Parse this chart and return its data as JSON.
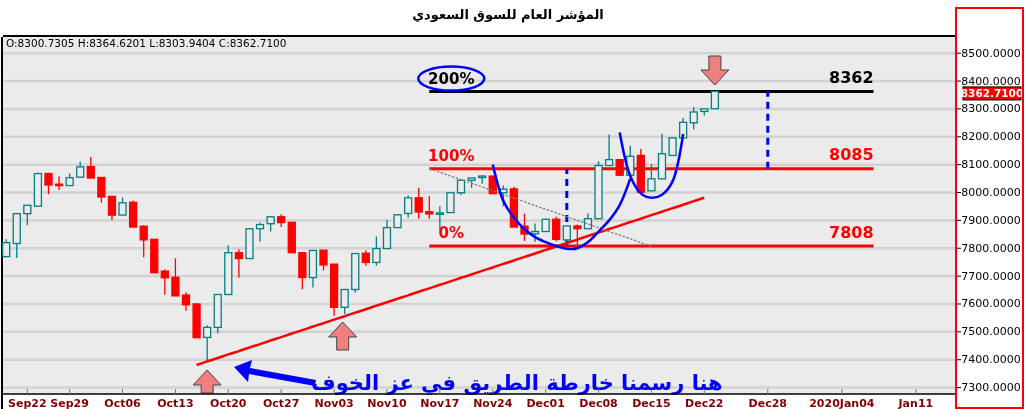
{
  "chart_data": {
    "type": "candlestick",
    "title": "المؤشر العام للسوق السعودي",
    "categories": [
      null,
      null,
      "Sep22",
      null,
      null,
      null,
      "Sep29",
      null,
      null,
      null,
      null,
      "Oct06",
      null,
      null,
      null,
      null,
      "Oct13",
      null,
      null,
      null,
      null,
      "Oct20",
      null,
      null,
      null,
      null,
      "Oct27",
      null,
      null,
      null,
      null,
      "Nov03",
      null,
      null,
      null,
      null,
      "Nov10",
      null,
      null,
      null,
      null,
      "Nov17",
      null,
      null,
      null,
      null,
      "Nov24",
      null,
      null,
      null,
      null,
      "Dec01",
      null,
      null,
      null,
      null,
      "Dec08",
      null,
      null,
      null,
      null,
      "Dec15",
      null,
      null,
      null,
      null,
      "Dec22",
      null,
      null,
      null,
      null,
      null,
      "Dec28",
      null,
      null,
      null,
      null,
      null,
      null,
      "2020Jan04",
      null,
      null,
      null,
      null,
      null,
      null,
      "Jan11",
      null,
      null,
      null
    ],
    "ohlc": [
      [
        7770,
        7832,
        7768,
        7820
      ],
      [
        7817,
        7924,
        7765,
        7924
      ],
      [
        7924,
        7954,
        7883,
        7954
      ],
      [
        7951,
        8071,
        7948,
        8068
      ],
      [
        8068,
        8071,
        7994,
        8027
      ],
      [
        8030,
        8058,
        8009,
        8027
      ],
      [
        8025,
        8068,
        8025,
        8053
      ],
      [
        8055,
        8111,
        8053,
        8092
      ],
      [
        8093,
        8127,
        8052,
        8052
      ],
      [
        8054,
        8054,
        7963,
        7984
      ],
      [
        7986,
        7986,
        7901,
        7919
      ],
      [
        7919,
        7982,
        7919,
        7963
      ],
      [
        7965,
        7971,
        7876,
        7876
      ],
      [
        7879,
        7882,
        7768,
        7830
      ],
      [
        7832,
        7832,
        7712,
        7712
      ],
      [
        7718,
        7725,
        7633,
        7694
      ],
      [
        7696,
        7764,
        7629,
        7629
      ],
      [
        7632,
        7641,
        7576,
        7597
      ],
      [
        7600,
        7603,
        7479,
        7479
      ],
      [
        7480,
        7524,
        7397,
        7516
      ],
      [
        7516,
        7634,
        7495,
        7634
      ],
      [
        7634,
        7811,
        7634,
        7784
      ],
      [
        7784,
        7796,
        7694,
        7763
      ],
      [
        7763,
        7872,
        7763,
        7870
      ],
      [
        7870,
        7892,
        7824,
        7885
      ],
      [
        7888,
        7915,
        7860,
        7913
      ],
      [
        7913,
        7922,
        7876,
        7892
      ],
      [
        7893,
        7893,
        7782,
        7784
      ],
      [
        7784,
        7784,
        7653,
        7695
      ],
      [
        7695,
        7792,
        7659,
        7792
      ],
      [
        7793,
        7793,
        7720,
        7740
      ],
      [
        7743,
        7743,
        7558,
        7588
      ],
      [
        7588,
        7652,
        7564,
        7652
      ],
      [
        7652,
        7781,
        7641,
        7781
      ],
      [
        7782,
        7793,
        7737,
        7749
      ],
      [
        7749,
        7842,
        7737,
        7799
      ],
      [
        7799,
        7901,
        7799,
        7874
      ],
      [
        7874,
        7922,
        7874,
        7920
      ],
      [
        7925,
        7990,
        7910,
        7981
      ],
      [
        7981,
        8017,
        7906,
        7930
      ],
      [
        7931,
        7987,
        7906,
        7923
      ],
      [
        7926,
        7951,
        7868,
        7927
      ],
      [
        7928,
        7999,
        7928,
        7999
      ],
      [
        7999,
        8046,
        7991,
        8044
      ],
      [
        8044,
        8052,
        8017,
        8052
      ],
      [
        8054,
        8061,
        8031,
        8059
      ],
      [
        8059,
        8059,
        7996,
        7996
      ],
      [
        7999,
        8025,
        7951,
        8012
      ],
      [
        8013,
        8021,
        7876,
        7876
      ],
      [
        7879,
        7924,
        7826,
        7851
      ],
      [
        7852,
        7889,
        7823,
        7860
      ],
      [
        7860,
        7906,
        7860,
        7904
      ],
      [
        7904,
        7913,
        7825,
        7832
      ],
      [
        7830,
        7882,
        7808,
        7880
      ],
      [
        7880,
        7885,
        7808,
        7870
      ],
      [
        7870,
        7925,
        7870,
        7906
      ],
      [
        7906,
        8112,
        7906,
        8097
      ],
      [
        8097,
        8208,
        8097,
        8118
      ],
      [
        8118,
        8118,
        8062,
        8062
      ],
      [
        8062,
        8168,
        8062,
        8130
      ],
      [
        8133,
        8157,
        8001,
        8001
      ],
      [
        8006,
        8102,
        8006,
        8049
      ],
      [
        8049,
        8211,
        8049,
        8139
      ],
      [
        8133,
        8196,
        8133,
        8196
      ],
      [
        8196,
        8267,
        8196,
        8252
      ],
      [
        8250,
        8307,
        8226,
        8289
      ],
      [
        8291,
        8300,
        8276,
        8300
      ],
      [
        8300.7305,
        8364.6201,
        8300.7305,
        8362.71
      ],
      null,
      null,
      null,
      null,
      null,
      null,
      null,
      null,
      null,
      null,
      null,
      null,
      null,
      null,
      null,
      null,
      null,
      null,
      null,
      null,
      null,
      null
    ],
    "colors": [
      "#008080",
      "#008080",
      "#008080",
      "#008080",
      "#ff0000",
      "#ff0000",
      "#008080",
      "#008080",
      "#ff0000",
      "#ff0000",
      "#ff0000",
      "#008080",
      "#ff0000",
      "#ff0000",
      "#ff0000",
      "#ff0000",
      "#ff0000",
      "#ff0000",
      "#ff0000",
      "#008080",
      "#008080",
      "#008080",
      "#ff0000",
      "#008080",
      "#008080",
      "#008080",
      "#ff0000",
      "#ff0000",
      "#ff0000",
      "#008080",
      "#ff0000",
      "#ff0000",
      "#008080",
      "#008080",
      "#ff0000",
      "#008080",
      "#008080",
      "#008080",
      "#008080",
      "#ff0000",
      "#ff0000",
      "#008080",
      "#008080",
      "#008080",
      "#008080",
      "#008080",
      "#ff0000",
      "#008080",
      "#ff0000",
      "#ff0000",
      "#008080",
      "#008080",
      "#ff0000",
      "#008080",
      "#ff0000",
      "#008080",
      "#008080",
      "#008080",
      "#ff0000",
      "#008080",
      "#ff0000",
      "#008080",
      "#008080",
      "#008080",
      "#008080",
      "#008080",
      "#008080",
      "#008080",
      null,
      null,
      null,
      null,
      null,
      null,
      null,
      null,
      null,
      null,
      null,
      null,
      null,
      null,
      null,
      null,
      null,
      null,
      null,
      null,
      null,
      null
    ],
    "series": [
      {
        "type": "line",
        "color": "#ff0000",
        "values": [
          null,
          null,
          null,
          null,
          null,
          null,
          null,
          null,
          null,
          null,
          null,
          null,
          null,
          null,
          null,
          null,
          null,
          null,
          7381,
          7394,
          7406,
          7419,
          7431,
          7444,
          7456,
          7469,
          7481,
          7494,
          7506,
          7519,
          7531,
          7544,
          7556,
          7569,
          7581,
          7594,
          7606,
          7619,
          7631,
          7644,
          7656,
          7669,
          7681,
          7694,
          7706,
          7719,
          7731,
          7744,
          7756,
          7769,
          7781,
          7794,
          7806,
          7819,
          7831,
          7844,
          7856,
          7869,
          7881,
          7894,
          7906,
          7919,
          7931,
          7944,
          7956,
          7969,
          7981,
          null,
          null,
          null,
          null,
          null,
          null,
          null,
          null,
          null,
          null,
          null,
          null,
          null,
          null,
          null,
          null,
          null,
          null,
          null,
          null,
          null,
          null,
          null
        ]
      },
      {
        "type": "line",
        "color": "#808080",
        "line_style": "dotted",
        "values": [
          null,
          null,
          null,
          null,
          null,
          null,
          null,
          null,
          null,
          null,
          null,
          null,
          null,
          null,
          null,
          null,
          null,
          null,
          null,
          null,
          null,
          null,
          null,
          null,
          null,
          null,
          null,
          null,
          null,
          null,
          null,
          null,
          null,
          null,
          null,
          null,
          null,
          null,
          null,
          null,
          8086,
          8073,
          8059,
          8046,
          8033,
          8020,
          8006,
          7993,
          7980,
          7967,
          7953,
          7940,
          7927,
          7913,
          7900,
          7887,
          7874,
          7860,
          7847,
          7834,
          7820,
          7807,
          null,
          null,
          null,
          null,
          null,
          null,
          null,
          null,
          null,
          null,
          null,
          null,
          null,
          null,
          null,
          null,
          null,
          null,
          null,
          null,
          null,
          null,
          null,
          null,
          null,
          null,
          null,
          null
        ]
      },
      {
        "type": "line",
        "color": "#0000ff",
        "values": [
          null,
          null,
          null,
          null,
          null,
          null,
          null,
          null,
          null,
          null,
          null,
          null,
          null,
          null,
          null,
          null,
          null,
          null,
          null,
          null,
          null,
          null,
          null,
          null,
          null,
          null,
          null,
          null,
          null,
          null,
          null,
          null,
          null,
          null,
          null,
          null,
          null,
          null,
          null,
          null,
          null,
          null,
          null,
          null,
          null,
          null,
          8100,
          7970,
          7910,
          7868,
          7840,
          7822,
          7808,
          7798,
          7800,
          7822,
          7860,
          7900,
          7955,
          8050,
          null,
          null,
          null,
          null,
          null,
          null,
          null,
          null,
          null,
          null,
          null,
          null,
          null,
          null,
          null,
          null,
          null,
          null,
          null,
          null,
          null,
          null,
          null,
          null,
          null,
          null,
          null,
          null,
          null,
          null
        ]
      },
      {
        "type": "line",
        "color": "#0000ff",
        "values": [
          null,
          null,
          null,
          null,
          null,
          null,
          null,
          null,
          null,
          null,
          null,
          null,
          null,
          null,
          null,
          null,
          null,
          null,
          null,
          null,
          null,
          null,
          null,
          null,
          null,
          null,
          null,
          null,
          null,
          null,
          null,
          null,
          null,
          null,
          null,
          null,
          null,
          null,
          null,
          null,
          null,
          null,
          null,
          null,
          null,
          null,
          null,
          null,
          null,
          null,
          null,
          null,
          null,
          null,
          null,
          null,
          null,
          null,
          8215,
          8059,
          7997,
          7981,
          7992,
          8040,
          8210,
          null,
          null,
          null,
          null,
          null,
          null,
          null,
          null,
          null,
          null,
          null,
          null,
          null,
          null,
          null,
          null,
          null,
          null,
          null,
          null,
          null,
          null,
          null,
          null,
          null
        ]
      }
    ],
    "ref_lines": [
      {
        "axis": "y",
        "value": 8362,
        "label": "8362",
        "color": "#000000"
      },
      {
        "axis": "y",
        "value": 8085,
        "label": "8085",
        "color": "#ff0000"
      },
      {
        "axis": "y",
        "value": 7808,
        "label": "7808",
        "color": "#ff0000"
      }
    ],
    "annotations": [
      "O:8300.7305  H:8364.6201  L:8303.9404  C:8362.7100",
      {
        "text": "200%",
        "y": 8362
      },
      {
        "text": "100%",
        "y": 8085
      },
      {
        "text": "0%",
        "y": 7808
      },
      "هنا رسمنا خارطة الطريق في عز الخوف",
      "8362.7100"
    ],
    "ylim": [
      7277,
      8558
    ],
    "yticks": [
      {
        "value": 7300,
        "label": "7300.0000"
      },
      {
        "value": 7400,
        "label": "7400.0000"
      },
      {
        "value": 7500,
        "label": "7500.0000"
      },
      {
        "value": 7600,
        "label": "7600.0000"
      },
      {
        "value": 7700,
        "label": "7700.0000"
      },
      {
        "value": 7800,
        "label": "7800.0000"
      },
      {
        "value": 7900,
        "label": "7900.0000"
      },
      {
        "value": 8000,
        "label": "8000.0000"
      },
      {
        "value": 8100,
        "label": "8100.0000"
      },
      {
        "value": 8200,
        "label": "8200.0000"
      },
      {
        "value": 8300,
        "label": "8300.0000"
      },
      {
        "value": 8400,
        "label": "8400.0000"
      },
      {
        "value": 8500,
        "label": "8500.0000"
      }
    ],
    "grid": "y"
  }
}
